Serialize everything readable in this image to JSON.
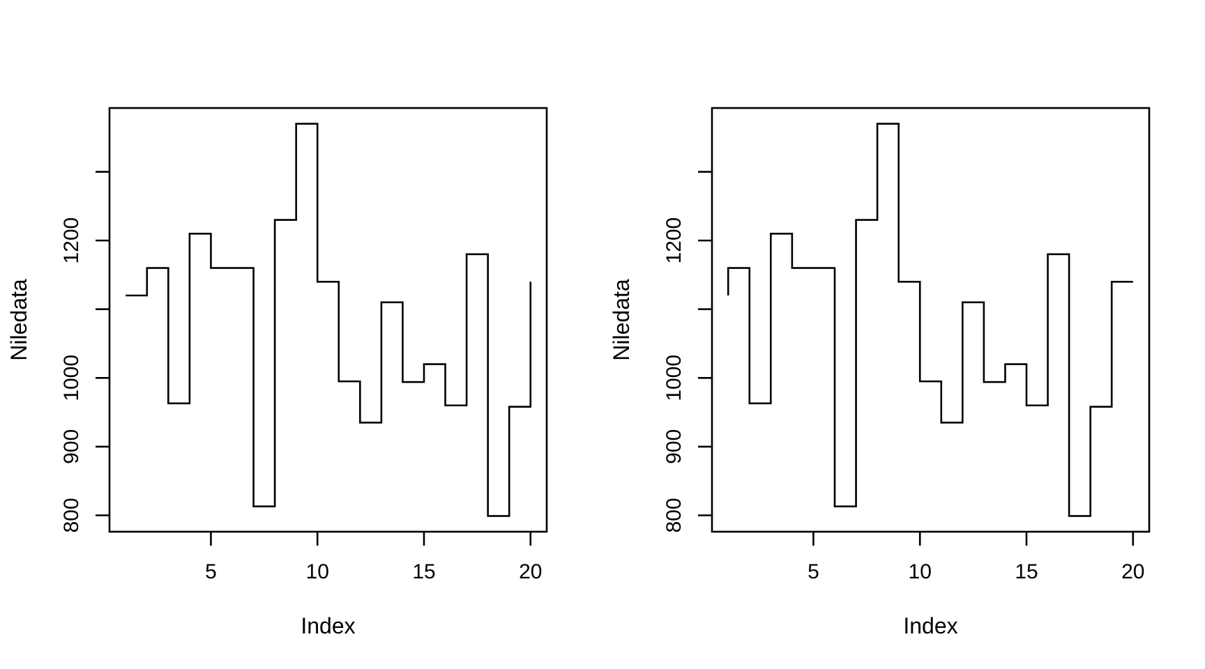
{
  "figure": {
    "background": "#ffffff",
    "line_color": "#000000",
    "text_color": "#000000"
  },
  "chart_data": [
    {
      "type": "line",
      "subtype": "step",
      "step_style": "s",
      "title": "",
      "xlabel": "Index",
      "ylabel": "Niledata",
      "x": [
        1,
        2,
        3,
        4,
        5,
        6,
        7,
        8,
        9,
        10,
        11,
        12,
        13,
        14,
        15,
        16,
        17,
        18,
        19,
        20
      ],
      "values": [
        1120,
        1160,
        963,
        1210,
        1160,
        1160,
        813,
        1230,
        1370,
        1140,
        995,
        935,
        1110,
        994,
        1020,
        960,
        1180,
        799,
        958,
        1140
      ],
      "xlim": [
        0.24,
        20.76
      ],
      "ylim": [
        776.16,
        1392.84
      ],
      "x_ticks": [
        5,
        10,
        15,
        20
      ],
      "x_tick_labels": [
        "5",
        "10",
        "15",
        "20"
      ],
      "y_ticks": [
        800,
        900,
        1000,
        1100,
        1200,
        1300
      ],
      "y_tick_labels": [
        "800",
        "900",
        "1000",
        "",
        "1200",
        ""
      ],
      "grid": false,
      "legend": null,
      "box": true
    },
    {
      "type": "line",
      "subtype": "step",
      "step_style": "S",
      "title": "",
      "xlabel": "Index",
      "ylabel": "Niledata",
      "x": [
        1,
        2,
        3,
        4,
        5,
        6,
        7,
        8,
        9,
        10,
        11,
        12,
        13,
        14,
        15,
        16,
        17,
        18,
        19,
        20
      ],
      "values": [
        1120,
        1160,
        963,
        1210,
        1160,
        1160,
        813,
        1230,
        1370,
        1140,
        995,
        935,
        1110,
        994,
        1020,
        960,
        1180,
        799,
        958,
        1140
      ],
      "xlim": [
        0.24,
        20.76
      ],
      "ylim": [
        776.16,
        1392.84
      ],
      "x_ticks": [
        5,
        10,
        15,
        20
      ],
      "x_tick_labels": [
        "5",
        "10",
        "15",
        "20"
      ],
      "y_ticks": [
        800,
        900,
        1000,
        1100,
        1200,
        1300
      ],
      "y_tick_labels": [
        "800",
        "900",
        "1000",
        "",
        "1200",
        ""
      ],
      "grid": false,
      "legend": null,
      "box": true
    }
  ]
}
